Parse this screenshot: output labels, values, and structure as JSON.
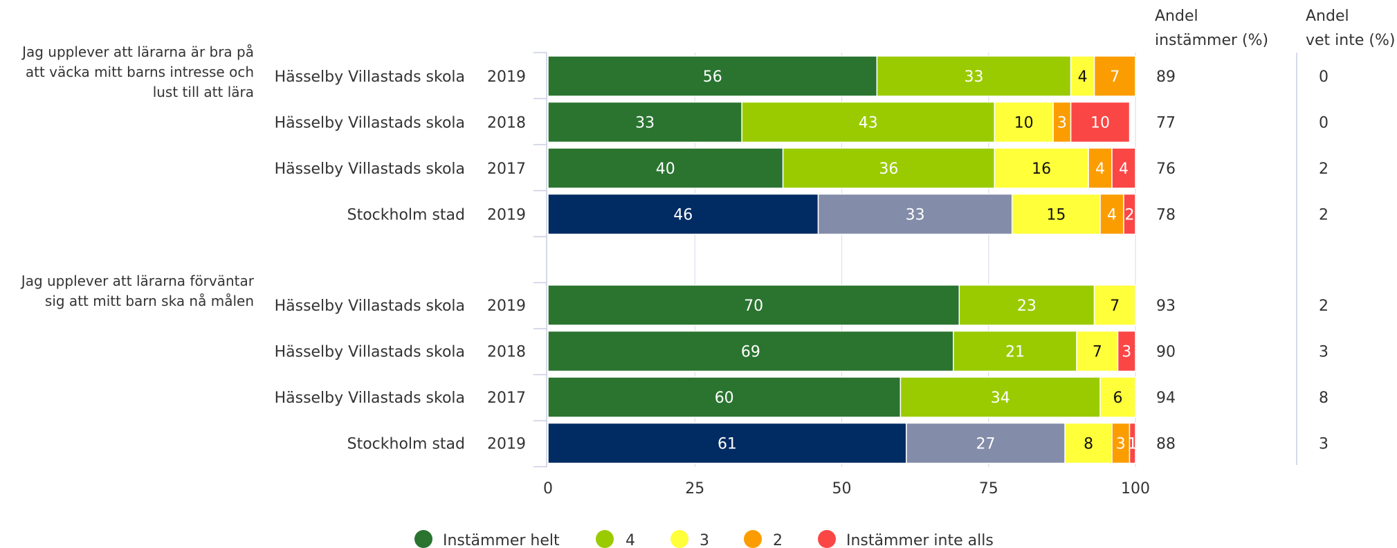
{
  "chart_data": {
    "type": "bar",
    "orientation": "horizontal",
    "stacked": true,
    "xlim": [
      0,
      100
    ],
    "xticks": [
      "0",
      "25",
      "50",
      "75",
      "100"
    ],
    "grid": true,
    "legend_position": "bottom",
    "columns": {
      "andel_instammer": "Andel instämmer (%)",
      "andel_vet_inte": "Andel vet inte (%)"
    },
    "series": [
      {
        "name": "Instämmer helt",
        "color": "#2a7430",
        "stockholm_color": "#002b63"
      },
      {
        "name": "4",
        "color": "#9acb00",
        "stockholm_color": "#838ca8"
      },
      {
        "name": "3",
        "color": "#ffff3a"
      },
      {
        "name": "2",
        "color": "#fb9d00"
      },
      {
        "name": "Instämmer inte alls",
        "color": "#fb4646"
      }
    ],
    "groups": [
      {
        "question": "Jag upplever att lärarna är bra på att väcka mitt barns intresse och lust till att lära",
        "rows": [
          {
            "entity": "Hässelby Villastads skola",
            "year": "2019",
            "values": [
              56,
              33,
              4,
              7,
              0
            ],
            "andel_instammer": "89",
            "andel_vet_inte": "0",
            "stockholm": false
          },
          {
            "entity": "Hässelby Villastads skola",
            "year": "2018",
            "values": [
              33,
              43,
              10,
              3,
              10
            ],
            "andel_instammer": "77",
            "andel_vet_inte": "0",
            "stockholm": false
          },
          {
            "entity": "Hässelby Villastads skola",
            "year": "2017",
            "values": [
              40,
              36,
              16,
              4,
              4
            ],
            "andel_instammer": "76",
            "andel_vet_inte": "2",
            "stockholm": false
          },
          {
            "entity": "Stockholm stad",
            "year": "2019",
            "values": [
              46,
              33,
              15,
              4,
              2
            ],
            "andel_instammer": "78",
            "andel_vet_inte": "2",
            "stockholm": true
          }
        ]
      },
      {
        "question": "Jag upplever att lärarna förväntar sig att mitt barn ska nå målen",
        "rows": [
          {
            "entity": "Hässelby Villastads skola",
            "year": "2019",
            "values": [
              70,
              23,
              7,
              0,
              0
            ],
            "andel_instammer": "93",
            "andel_vet_inte": "2",
            "stockholm": false
          },
          {
            "entity": "Hässelby Villastads skola",
            "year": "2018",
            "values": [
              69,
              21,
              7,
              0,
              3
            ],
            "andel_instammer": "90",
            "andel_vet_inte": "3",
            "stockholm": false
          },
          {
            "entity": "Hässelby Villastads skola",
            "year": "2017",
            "values": [
              60,
              34,
              6,
              0,
              0
            ],
            "andel_instammer": "94",
            "andel_vet_inte": "8",
            "stockholm": false
          },
          {
            "entity": "Stockholm stad",
            "year": "2019",
            "values": [
              61,
              27,
              8,
              3,
              1
            ],
            "andel_instammer": "88",
            "andel_vet_inte": "3",
            "stockholm": true
          }
        ]
      }
    ]
  }
}
